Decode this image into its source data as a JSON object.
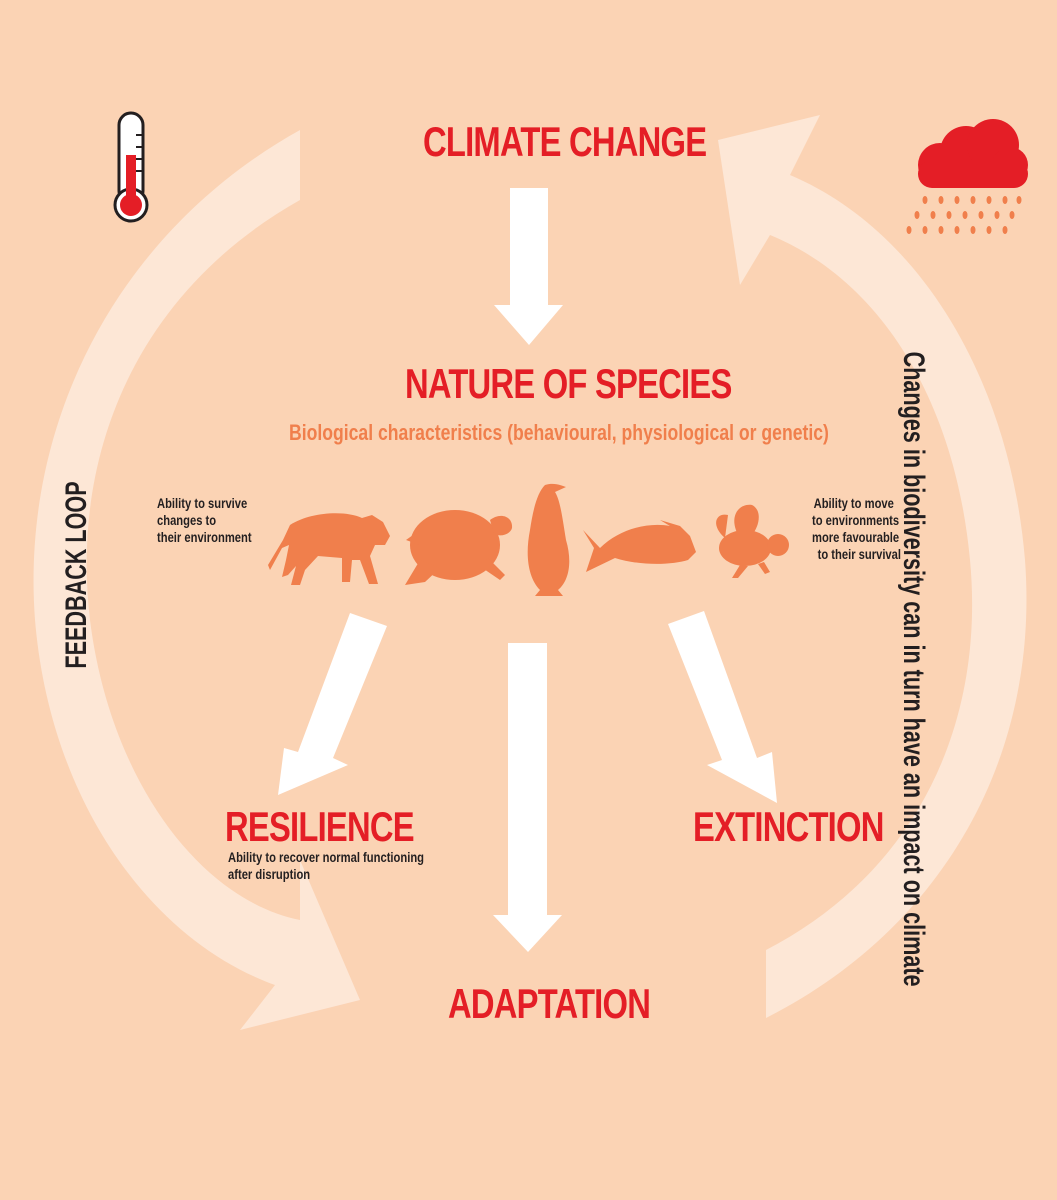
{
  "diagram": {
    "top_node": "CLIMATE CHANGE",
    "middle_node": {
      "title": "NATURE OF SPECIES",
      "subtitle": "Biological characteristics (behavioural, physiological or genetic)"
    },
    "left_note": [
      "Ability to survive",
      "changes to",
      "their environment"
    ],
    "right_note": [
      "Ability to move",
      "to environments",
      "more favourable",
      "to their survival"
    ],
    "outcomes": {
      "resilience": {
        "title": "RESILIENCE",
        "description": [
          "Ability to recover normal functioning",
          "after disruption"
        ]
      },
      "adaptation": {
        "title": "ADAPTATION"
      },
      "extinction": {
        "title": "EXTINCTION"
      }
    },
    "feedback_loop_label": "FEEDBACK LOOP",
    "impact_label": "Changes in biodiversity can in turn have an impact on climate",
    "icons": [
      "thermometer-icon",
      "rain-cloud-icon",
      "tiger-icon",
      "turtle-icon",
      "penguin-icon",
      "fish-icon",
      "bee-icon"
    ],
    "colors": {
      "background": "#fbd3b4",
      "title_red": "#e41e26",
      "animal_orange": "#f07f4c",
      "arrow_white": "#ffffff",
      "loop_arrow": "#fdeadc"
    }
  }
}
